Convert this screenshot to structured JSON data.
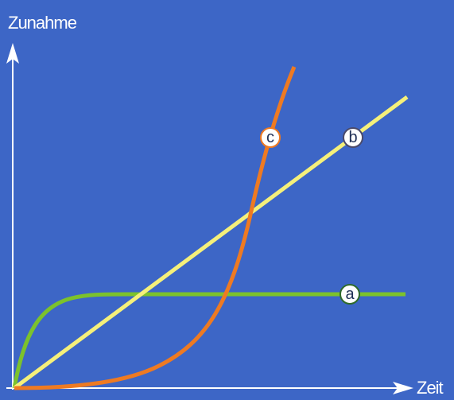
{
  "axes": {
    "y_label": "Zunahme",
    "x_label": "Zeit"
  },
  "curves": [
    {
      "label": "a"
    },
    {
      "label": "b"
    },
    {
      "label": "c"
    }
  ]
}
